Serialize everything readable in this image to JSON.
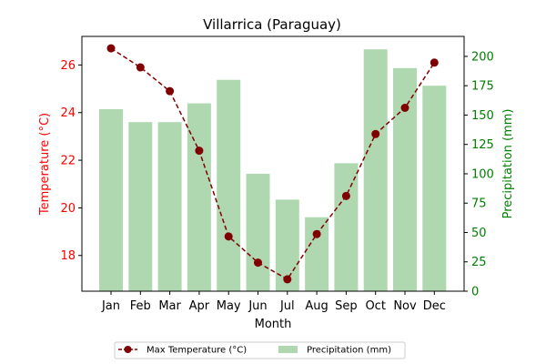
{
  "chart_data": {
    "type": "bar+line",
    "title": "Villarrica (Paraguay)",
    "xlabel": "Month",
    "categories": [
      "Jan",
      "Feb",
      "Mar",
      "Apr",
      "May",
      "Jun",
      "Jul",
      "Aug",
      "Sep",
      "Oct",
      "Nov",
      "Dec"
    ],
    "left_axis": {
      "label": "Temperature (°C)",
      "color": "#ff0000",
      "ylim": [
        16.5,
        27.2
      ],
      "ticks": [
        18,
        20,
        22,
        24,
        26
      ]
    },
    "right_axis": {
      "label": "Precipitation (mm)",
      "color": "#008000",
      "ylim": [
        0,
        217
      ],
      "ticks": [
        0,
        25,
        50,
        75,
        100,
        125,
        150,
        175,
        200
      ]
    },
    "series": [
      {
        "name": "Max Temperature (°C)",
        "kind": "line",
        "axis": "left",
        "color": "#800000",
        "style": "dashed with circle markers",
        "values": [
          26.7,
          25.9,
          24.9,
          22.4,
          18.8,
          17.7,
          17.0,
          18.9,
          20.5,
          23.1,
          24.2,
          26.1
        ]
      },
      {
        "name": "Precipitation (mm)",
        "kind": "bar",
        "axis": "right",
        "color": "#b0d8b0",
        "values": [
          155,
          144,
          144,
          160,
          180,
          100,
          78,
          63,
          109,
          206,
          190,
          175
        ]
      }
    ],
    "legend": "bottom-center",
    "grid": false
  }
}
